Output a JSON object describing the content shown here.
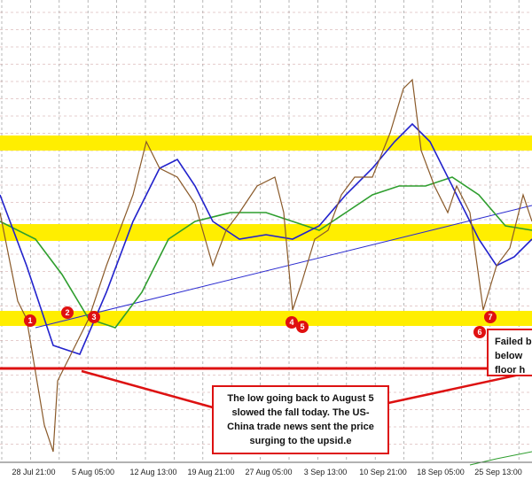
{
  "chart_data": {
    "type": "candlestick",
    "categories": [
      "28 Jul 21:00",
      "5 Aug 05:00",
      "12 Aug 13:00",
      "19 Aug 21:00",
      "27 Aug 05:00",
      "3 Sep 13:00",
      "10 Sep 21:00",
      "18 Sep 05:00",
      "25 Sep 13:00"
    ],
    "markers": [
      "1",
      "2",
      "3",
      "4",
      "5",
      "6",
      "7"
    ],
    "annotations": [
      {
        "lines": [
          "The low going back to August 5",
          "slowed the fall today.  The US-",
          "China trade news sent the price",
          "surging to the upsid.e"
        ]
      },
      {
        "lines": [
          "Failed b",
          "below",
          "floor h"
        ]
      }
    ],
    "grid": true
  }
}
